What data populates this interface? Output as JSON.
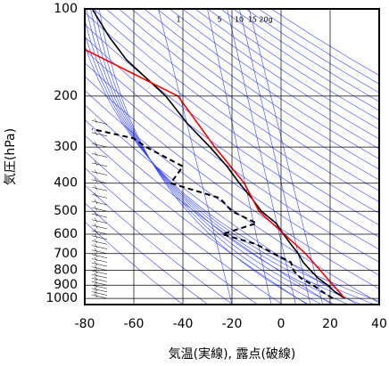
{
  "chart_data": {
    "type": "line",
    "y_label": "気圧(hPa)",
    "x_label": "気温(実線), 露点(破線)",
    "annotations": [
      "1",
      "5",
      "10",
      "15",
      "20g"
    ],
    "xlim": [
      -80,
      40
    ],
    "xticks": [
      -80,
      -60,
      -40,
      -20,
      0,
      20,
      40
    ],
    "ylim": [
      1050,
      100
    ],
    "ylog": true,
    "yticks": [
      100,
      200,
      300,
      400,
      500,
      600,
      700,
      800,
      900,
      1000
    ],
    "grid": true,
    "series": [
      {
        "name": null,
        "color": "#000000",
        "dash": false,
        "x": [
          26,
          22,
          19,
          15,
          12,
          9,
          7,
          4,
          1,
          -2,
          -8,
          -12,
          -17,
          -22,
          -29,
          -38,
          -47,
          -63,
          -70,
          -77
        ],
        "y": [
          1000,
          950,
          900,
          850,
          800,
          750,
          700,
          650,
          600,
          550,
          500,
          450,
          400,
          350,
          300,
          250,
          200,
          150,
          125,
          100
        ]
      },
      {
        "name": null,
        "color": "#000000",
        "dash": true,
        "x": [
          21,
          17,
          13,
          8,
          5,
          4,
          -3,
          -10,
          -24,
          -10,
          -20,
          -25,
          -45,
          -40,
          -55,
          -60,
          -77
        ],
        "y": [
          1000,
          950,
          900,
          850,
          800,
          750,
          700,
          650,
          600,
          550,
          500,
          450,
          400,
          350,
          300,
          280,
          260
        ]
      },
      {
        "name": null,
        "color": "#ff0000",
        "dash": false,
        "x": [
          26,
          10,
          -9,
          -15,
          -27,
          -42,
          -80
        ],
        "y": [
          1000,
          700,
          500,
          400,
          300,
          200,
          138
        ]
      }
    ]
  }
}
